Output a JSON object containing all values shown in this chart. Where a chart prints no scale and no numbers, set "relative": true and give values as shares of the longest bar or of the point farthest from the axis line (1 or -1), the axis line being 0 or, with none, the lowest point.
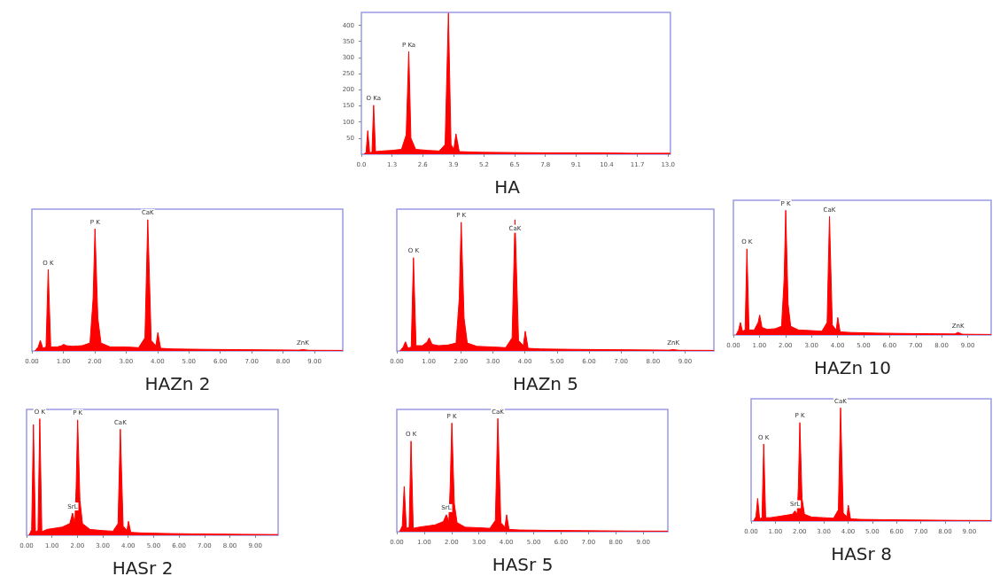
{
  "chart_data": [
    {
      "type": "area",
      "title": "HA",
      "color": "#ff0000",
      "marker": "none",
      "grid": false,
      "xlim": [
        0,
        13.1
      ],
      "ylim": [
        0,
        440
      ],
      "xticks": [
        {
          "value": 0,
          "label": "0.0"
        },
        1.3,
        2.6,
        3.9,
        5.2,
        6.5,
        7.8,
        9.1,
        10.4,
        11.7,
        {
          "value": 13,
          "label": "13.0"
        }
      ],
      "yticks": [
        50,
        100,
        150,
        200,
        250,
        300,
        350,
        400
      ],
      "x": [
        0.1,
        0.2,
        0.27,
        0.35,
        0.45,
        0.52,
        0.6,
        0.9,
        1.3,
        1.7,
        1.9,
        2.01,
        2.1,
        2.3,
        2.8,
        3.3,
        3.55,
        3.69,
        3.8,
        3.92,
        4.01,
        4.15,
        5,
        6.5,
        8,
        10,
        11.5,
        13.1
      ],
      "values": [
        0,
        5,
        73,
        5,
        6,
        152,
        8,
        10,
        12,
        15,
        60,
        319,
        50,
        15,
        12,
        10,
        30,
        438,
        30,
        15,
        63,
        8,
        6,
        5,
        4,
        4,
        3,
        3
      ],
      "annotations": [
        {
          "text": "O Ka",
          "x": 0.52,
          "y": 152
        },
        {
          "text": "P Ka",
          "x": 2.01,
          "y": 319
        }
      ]
    },
    {
      "type": "area",
      "title": "HAZn 2",
      "color": "#ff0000",
      "marker": "none",
      "grid": false,
      "relative": true,
      "xlim": [
        0,
        9.9
      ],
      "xticks": [
        {
          "value": 0,
          "label": "0.00"
        },
        {
          "value": 1,
          "label": "1.00"
        },
        {
          "value": 2,
          "label": "2.00"
        },
        {
          "value": 3,
          "label": "3.00"
        },
        {
          "value": 4,
          "label": "4.00"
        },
        {
          "value": 5,
          "label": "5.00"
        },
        {
          "value": 6,
          "label": "6.00"
        },
        {
          "value": 7,
          "label": "7.00"
        },
        {
          "value": 8,
          "label": "8.00"
        },
        {
          "value": 9,
          "label": "9.00"
        }
      ],
      "x": [
        0.1,
        0.2,
        0.27,
        0.35,
        0.45,
        0.52,
        0.6,
        0.8,
        0.95,
        1.01,
        1.1,
        1.3,
        1.6,
        1.85,
        1.95,
        2.01,
        2.1,
        2.2,
        2.5,
        3.0,
        3.4,
        3.6,
        3.69,
        3.8,
        3.95,
        4.01,
        4.1,
        4.5,
        5.5,
        6.5,
        7.5,
        8.5,
        8.63,
        8.8,
        9.9
      ],
      "values": [
        0,
        0.03,
        0.08,
        0.02,
        0.03,
        0.62,
        0.03,
        0.03,
        0.04,
        0.05,
        0.04,
        0.035,
        0.04,
        0.06,
        0.4,
        0.93,
        0.25,
        0.06,
        0.03,
        0.03,
        0.025,
        0.1,
        1,
        0.08,
        0.04,
        0.14,
        0.02,
        0.015,
        0.012,
        0.01,
        0.008,
        0.006,
        0.01,
        0.005,
        0.004
      ],
      "annotations": [
        {
          "text": "O K",
          "x": 0.52,
          "y": 0.62
        },
        {
          "text": "P K",
          "x": 2.01,
          "y": 0.93
        },
        {
          "text": "CaK",
          "x": 3.69,
          "y": 1
        },
        {
          "text": "ZnK",
          "x": 8.63,
          "y": 0.01
        }
      ]
    },
    {
      "type": "area",
      "title": "HAZn 5",
      "color": "#ff0000",
      "marker": "none",
      "grid": false,
      "relative": true,
      "xlim": [
        0,
        9.9
      ],
      "xticks": [
        {
          "value": 0,
          "label": "0.00"
        },
        {
          "value": 1,
          "label": "1.00"
        },
        {
          "value": 2,
          "label": "2.00"
        },
        {
          "value": 3,
          "label": "3.00"
        },
        {
          "value": 4,
          "label": "4.00"
        },
        {
          "value": 5,
          "label": "5.00"
        },
        {
          "value": 6,
          "label": "6.00"
        },
        {
          "value": 7,
          "label": "7.00"
        },
        {
          "value": 8,
          "label": "8.00"
        },
        {
          "value": 9,
          "label": "9.00"
        }
      ],
      "x": [
        0.1,
        0.2,
        0.27,
        0.35,
        0.45,
        0.52,
        0.6,
        0.8,
        0.95,
        1.01,
        1.1,
        1.3,
        1.6,
        1.85,
        1.95,
        2.01,
        2.1,
        2.2,
        2.5,
        3.0,
        3.4,
        3.6,
        3.69,
        3.8,
        3.95,
        4.01,
        4.1,
        4.5,
        5.5,
        6.5,
        7.5,
        8.5,
        8.63,
        8.8,
        9.9
      ],
      "values": [
        0,
        0.03,
        0.07,
        0.02,
        0.03,
        0.71,
        0.04,
        0.04,
        0.07,
        0.1,
        0.05,
        0.04,
        0.045,
        0.06,
        0.4,
        0.98,
        0.25,
        0.06,
        0.035,
        0.03,
        0.025,
        0.1,
        1,
        0.08,
        0.04,
        0.15,
        0.02,
        0.015,
        0.012,
        0.01,
        0.008,
        0.006,
        0.01,
        0.005,
        0.004
      ],
      "annotations": [
        {
          "text": "O K",
          "x": 0.52,
          "y": 0.71
        },
        {
          "text": "P K",
          "x": 2.01,
          "y": 0.98
        },
        {
          "text": "CaK",
          "x": 3.69,
          "y": 0.88
        },
        {
          "text": "ZnK",
          "x": 8.63,
          "y": 0.01
        }
      ]
    },
    {
      "type": "area",
      "title": "HAZn 10",
      "color": "#ff0000",
      "marker": "none",
      "grid": false,
      "relative": true,
      "xlim": [
        0,
        9.9
      ],
      "xticks": [
        {
          "value": 0,
          "label": "0.00"
        },
        {
          "value": 1,
          "label": "1.00"
        },
        {
          "value": 2,
          "label": "2.00"
        },
        {
          "value": 3,
          "label": "3.00"
        },
        {
          "value": 4,
          "label": "4.00"
        },
        {
          "value": 5,
          "label": "5.00"
        },
        {
          "value": 6,
          "label": "6.00"
        },
        {
          "value": 7,
          "label": "7.00"
        },
        {
          "value": 8,
          "label": "8.00"
        },
        {
          "value": 9,
          "label": "9.00"
        }
      ],
      "x": [
        0.1,
        0.2,
        0.27,
        0.35,
        0.45,
        0.52,
        0.6,
        0.8,
        0.95,
        1.01,
        1.1,
        1.3,
        1.6,
        1.85,
        1.95,
        2.01,
        2.1,
        2.2,
        2.5,
        3.0,
        3.4,
        3.6,
        3.69,
        3.8,
        3.95,
        4.01,
        4.1,
        4.5,
        5.5,
        6.5,
        7.5,
        8.5,
        8.63,
        8.8,
        9.9
      ],
      "values": [
        0,
        0.04,
        0.1,
        0.03,
        0.04,
        0.69,
        0.04,
        0.04,
        0.1,
        0.16,
        0.06,
        0.045,
        0.05,
        0.07,
        0.45,
        1,
        0.25,
        0.07,
        0.04,
        0.035,
        0.03,
        0.1,
        0.95,
        0.08,
        0.04,
        0.14,
        0.025,
        0.02,
        0.015,
        0.012,
        0.01,
        0.008,
        0.02,
        0.006,
        0.004
      ],
      "annotations": [
        {
          "text": "O K",
          "x": 0.52,
          "y": 0.69
        },
        {
          "text": "P K",
          "x": 2.01,
          "y": 1
        },
        {
          "text": "CaK",
          "x": 3.69,
          "y": 0.95
        },
        {
          "text": "ZnK",
          "x": 8.63,
          "y": 0.02
        }
      ]
    },
    {
      "type": "area",
      "title": "HASr 2",
      "color": "#ff0000",
      "marker": "none",
      "grid": false,
      "relative": true,
      "xlim": [
        0,
        9.9
      ],
      "xticks": [
        {
          "value": 0,
          "label": "0.00"
        },
        {
          "value": 1,
          "label": "1.00"
        },
        {
          "value": 2,
          "label": "2.00"
        },
        {
          "value": 3,
          "label": "3.00"
        },
        {
          "value": 4,
          "label": "4.00"
        },
        {
          "value": 5,
          "label": "5.00"
        },
        {
          "value": 6,
          "label": "6.00"
        },
        {
          "value": 7,
          "label": "7.00"
        },
        {
          "value": 8,
          "label": "8.00"
        },
        {
          "value": 9,
          "label": "9.00"
        }
      ],
      "x": [
        0.1,
        0.2,
        0.27,
        0.35,
        0.45,
        0.52,
        0.6,
        0.8,
        1.1,
        1.4,
        1.7,
        1.81,
        1.9,
        1.95,
        2.01,
        2.1,
        2.2,
        2.5,
        3.0,
        3.4,
        3.6,
        3.69,
        3.8,
        3.95,
        4.01,
        4.1,
        4.5,
        5.5,
        6.5,
        7.5,
        8.5,
        9.9
      ],
      "values": [
        0,
        0.05,
        0.95,
        0.03,
        0.04,
        1,
        0.03,
        0.05,
        0.06,
        0.07,
        0.1,
        0.19,
        0.1,
        0.4,
        0.99,
        0.3,
        0.1,
        0.05,
        0.04,
        0.035,
        0.1,
        0.91,
        0.08,
        0.04,
        0.12,
        0.025,
        0.02,
        0.015,
        0.012,
        0.01,
        0.008,
        0.006
      ],
      "annotations": [
        {
          "text": "O K",
          "x": 0.52,
          "y": 1
        },
        {
          "text": "SrL",
          "x": 1.81,
          "y": 0.19
        },
        {
          "text": "P K",
          "x": 2.01,
          "y": 0.99
        },
        {
          "text": "CaK",
          "x": 3.69,
          "y": 0.91
        }
      ]
    },
    {
      "type": "area",
      "title": "HASr 5",
      "color": "#ff0000",
      "marker": "none",
      "grid": false,
      "relative": true,
      "xlim": [
        0,
        9.9
      ],
      "xticks": [
        {
          "value": 0,
          "label": "0.00"
        },
        {
          "value": 1,
          "label": "1.00"
        },
        {
          "value": 2,
          "label": "2.00"
        },
        {
          "value": 3,
          "label": "3.00"
        },
        {
          "value": 4,
          "label": "4.00"
        },
        {
          "value": 5,
          "label": "5.00"
        },
        {
          "value": 6,
          "label": "6.00"
        },
        {
          "value": 7,
          "label": "7.00"
        },
        {
          "value": 8,
          "label": "8.00"
        },
        {
          "value": 9,
          "label": "9.00"
        }
      ],
      "x": [
        0.1,
        0.2,
        0.27,
        0.35,
        0.45,
        0.52,
        0.6,
        0.8,
        1.1,
        1.4,
        1.7,
        1.81,
        1.9,
        1.95,
        2.01,
        2.1,
        2.2,
        2.5,
        3.0,
        3.4,
        3.6,
        3.69,
        3.8,
        3.95,
        4.01,
        4.1,
        4.5,
        5.5,
        6.5,
        7.5,
        8.5,
        9.9
      ],
      "values": [
        0,
        0.05,
        0.4,
        0.03,
        0.04,
        0.8,
        0.03,
        0.04,
        0.05,
        0.06,
        0.09,
        0.15,
        0.09,
        0.4,
        0.96,
        0.25,
        0.08,
        0.04,
        0.035,
        0.03,
        0.1,
        1,
        0.08,
        0.04,
        0.15,
        0.02,
        0.015,
        0.012,
        0.01,
        0.008,
        0.006,
        0.005
      ],
      "annotations": [
        {
          "text": "O K",
          "x": 0.52,
          "y": 0.8
        },
        {
          "text": "SrL",
          "x": 1.81,
          "y": 0.15
        },
        {
          "text": "P K",
          "x": 2.01,
          "y": 0.96
        },
        {
          "text": "CaK",
          "x": 3.69,
          "y": 1
        }
      ]
    },
    {
      "type": "area",
      "title": "HASr 8",
      "color": "#ff0000",
      "marker": "none",
      "grid": false,
      "relative": true,
      "xlim": [
        0,
        9.9
      ],
      "xticks": [
        {
          "value": 0,
          "label": "0.00"
        },
        {
          "value": 1,
          "label": "1.00"
        },
        {
          "value": 2,
          "label": "2.00"
        },
        {
          "value": 3,
          "label": "3.00"
        },
        {
          "value": 4,
          "label": "4.00"
        },
        {
          "value": 5,
          "label": "5.00"
        },
        {
          "value": 6,
          "label": "6.00"
        },
        {
          "value": 7,
          "label": "7.00"
        },
        {
          "value": 8,
          "label": "8.00"
        },
        {
          "value": 9,
          "label": "9.00"
        }
      ],
      "x": [
        0.1,
        0.2,
        0.27,
        0.35,
        0.45,
        0.52,
        0.6,
        0.8,
        1.1,
        1.4,
        1.7,
        1.81,
        1.9,
        1.95,
        2.01,
        2.1,
        2.2,
        2.5,
        3.0,
        3.4,
        3.6,
        3.69,
        3.8,
        3.95,
        4.01,
        4.1,
        4.5,
        5.5,
        6.5,
        7.5,
        8.5,
        9.9
      ],
      "values": [
        0,
        0.04,
        0.2,
        0.02,
        0.03,
        0.68,
        0.03,
        0.03,
        0.04,
        0.05,
        0.06,
        0.09,
        0.06,
        0.3,
        0.87,
        0.2,
        0.06,
        0.035,
        0.03,
        0.025,
        0.1,
        1,
        0.07,
        0.04,
        0.14,
        0.02,
        0.015,
        0.012,
        0.01,
        0.008,
        0.006,
        0.005
      ],
      "annotations": [
        {
          "text": "O K",
          "x": 0.52,
          "y": 0.68
        },
        {
          "text": "SrL",
          "x": 1.81,
          "y": 0.09
        },
        {
          "text": "P K",
          "x": 2.01,
          "y": 0.87
        },
        {
          "text": "CaK",
          "x": 3.69,
          "y": 1
        }
      ]
    }
  ]
}
